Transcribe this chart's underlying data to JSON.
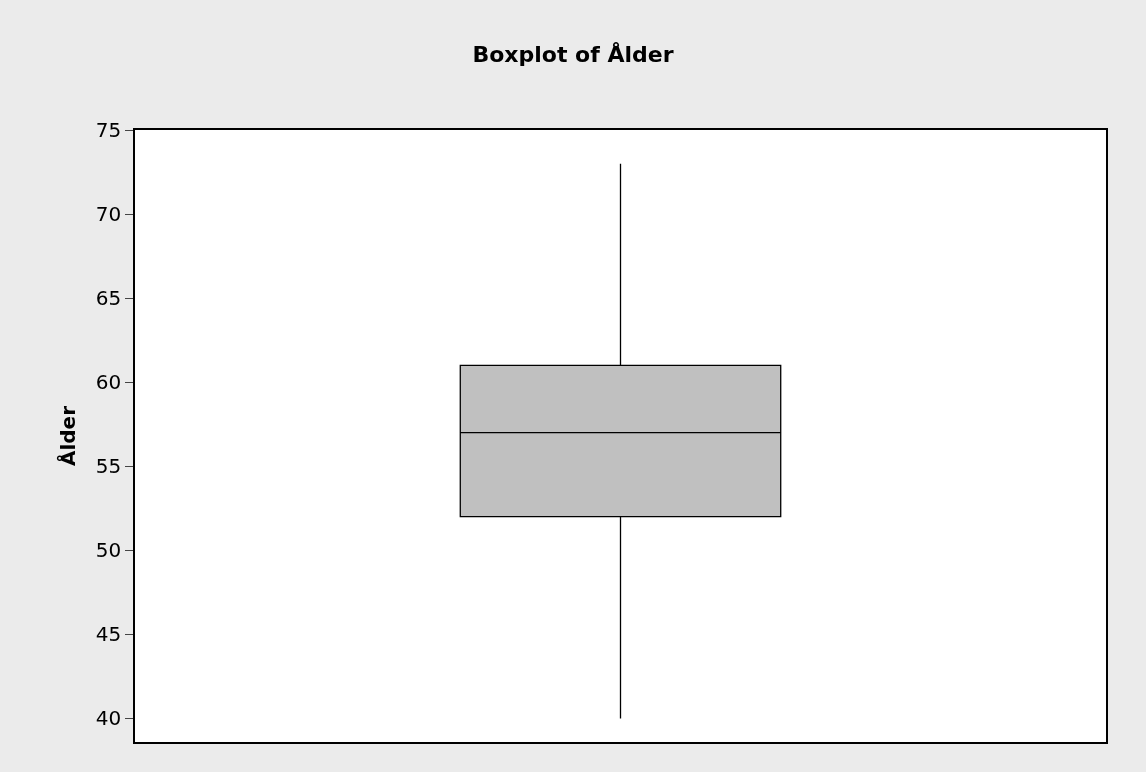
{
  "chart_data": {
    "type": "box",
    "title": "Boxplot of Ålder",
    "ylabel": "Ålder",
    "categories": [
      null
    ],
    "series": [
      {
        "color": "#c0c0c0",
        "boxes": [
          {
            "low": 40,
            "q1": 52,
            "median": 57,
            "q3": 61,
            "high": 73
          }
        ]
      }
    ],
    "ylim": [
      38.6,
      75
    ],
    "yticks": [
      40,
      45,
      50,
      55,
      60,
      65,
      70,
      75
    ],
    "tick_labels": "y"
  }
}
